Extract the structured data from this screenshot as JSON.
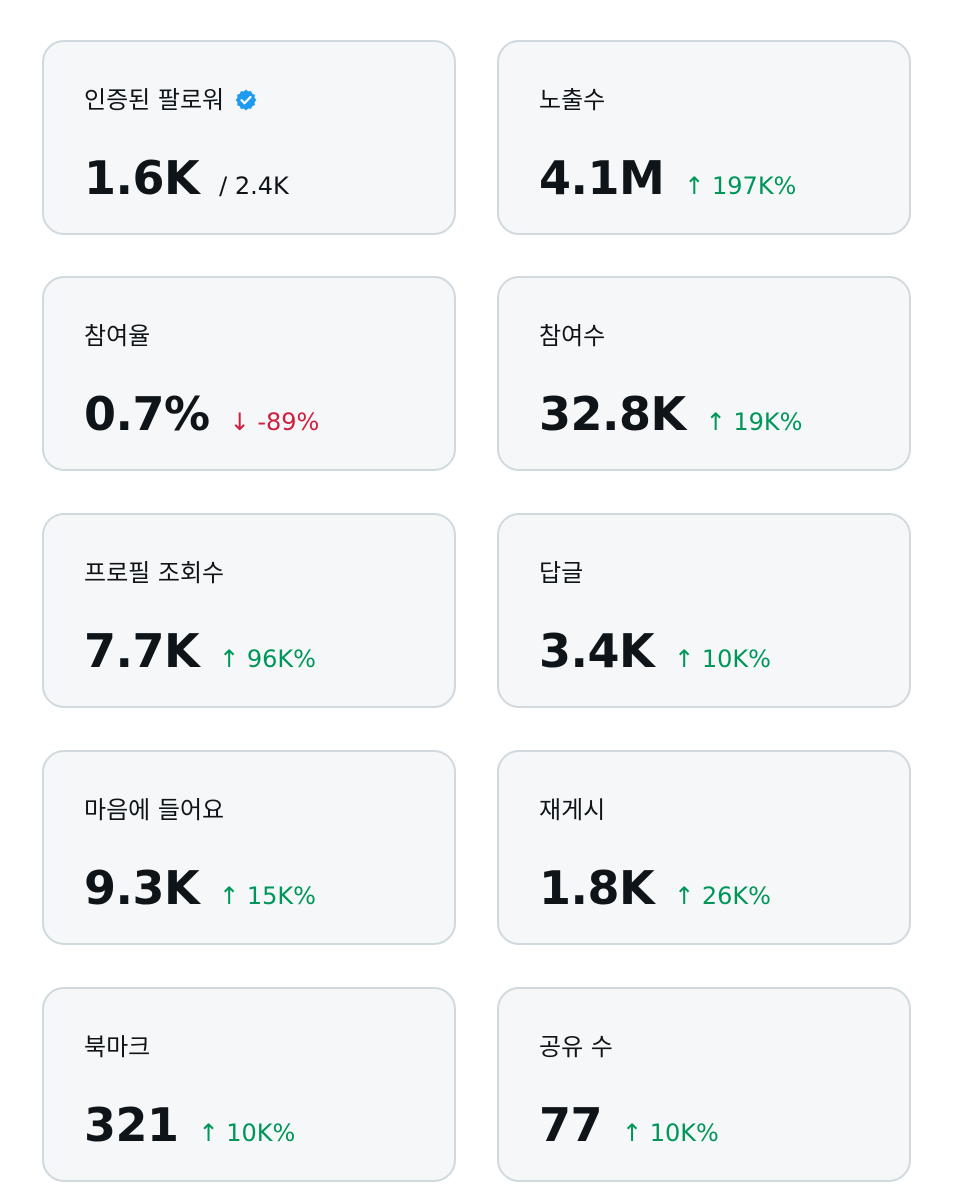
{
  "accent_up": "#00965a",
  "accent_down": "#d11f3e",
  "verified_icon_color": "#1d9bf0",
  "cards": [
    {
      "label": "인증된 팔로워",
      "value": "1.6K",
      "sub": "/ 2.4K",
      "verified": true
    },
    {
      "label": "노출수",
      "value": "4.1M",
      "delta": "↑ 197K%",
      "direction": "up"
    },
    {
      "label": "참여율",
      "value": "0.7%",
      "delta": "↓ -89%",
      "direction": "down"
    },
    {
      "label": "참여수",
      "value": "32.8K",
      "delta": "↑ 19K%",
      "direction": "up"
    },
    {
      "label": "프로필 조회수",
      "value": "7.7K",
      "delta": "↑ 96K%",
      "direction": "up"
    },
    {
      "label": "답글",
      "value": "3.4K",
      "delta": "↑ 10K%",
      "direction": "up"
    },
    {
      "label": "마음에 들어요",
      "value": "9.3K",
      "delta": "↑ 15K%",
      "direction": "up"
    },
    {
      "label": "재게시",
      "value": "1.8K",
      "delta": "↑ 26K%",
      "direction": "up"
    },
    {
      "label": "북마크",
      "value": "321",
      "delta": "↑ 10K%",
      "direction": "up"
    },
    {
      "label": "공유 수",
      "value": "77",
      "delta": "↑ 10K%",
      "direction": "up"
    }
  ]
}
